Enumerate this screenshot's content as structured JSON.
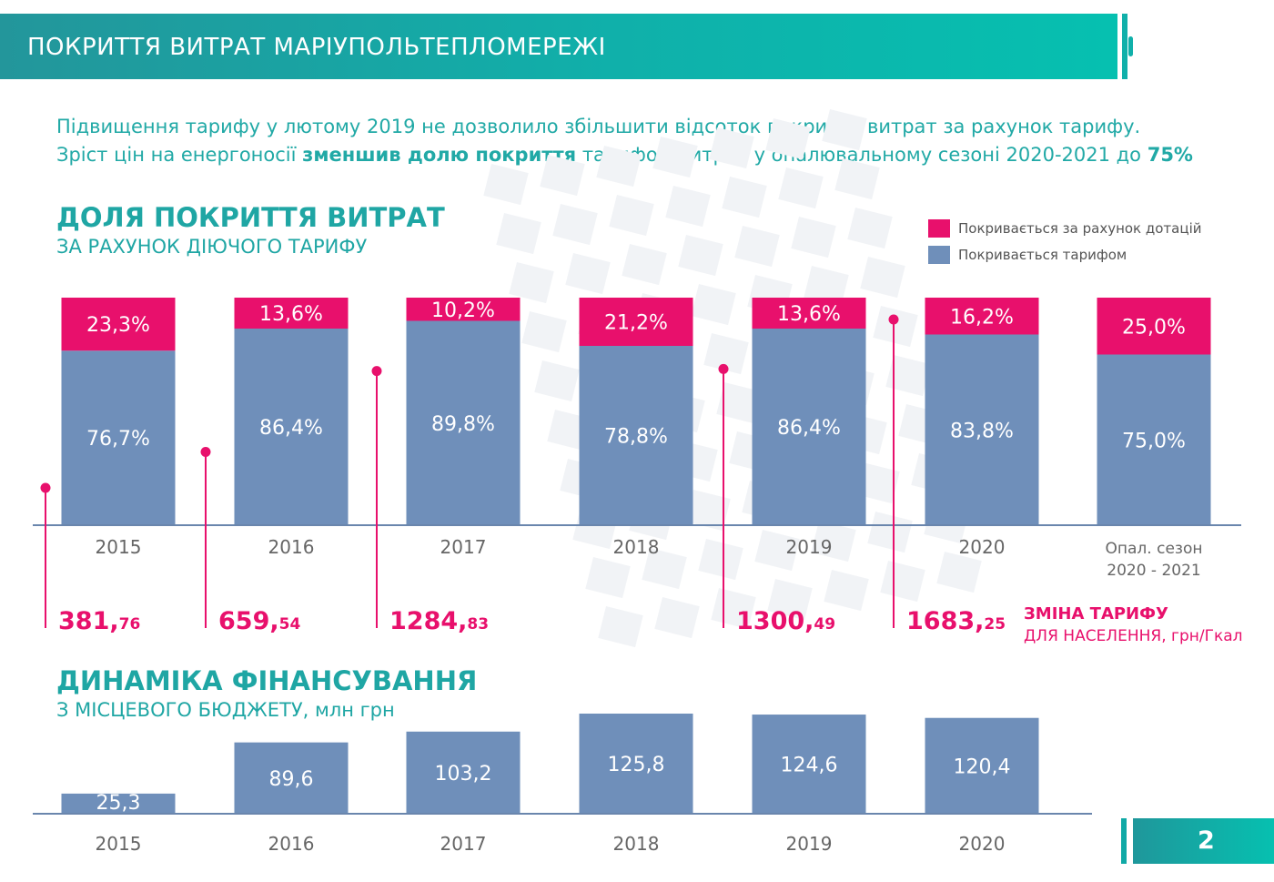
{
  "header": {
    "title": "ПОКРИТТЯ ВИТРАТ МАРІУПОЛЬТЕПЛОМЕРЕЖІ"
  },
  "intro": {
    "line1": "Підвищення тарифу у лютому 2019 не дозволило збільшити відсоток покриття витрат за рахунок тарифу.",
    "line2_a": "Зріст цін на енергоносії ",
    "line2_b": "зменшив долю покриття",
    "line2_c": " тарифом витрат у опалювальному сезоні 2020-2021 до ",
    "line2_d": "75%"
  },
  "coverage": {
    "title": "ДОЛЯ ПОКРИТТЯ ВИТРАТ",
    "subtitle": "ЗА РАХУНОК ДІЮЧОГО ТАРИФУ",
    "legend_subsidy": "Покривається за рахунок дотацій",
    "legend_tariff": "Покривається тарифом"
  },
  "tariff_note": {
    "line1": "ЗМІНА ТАРИФУ",
    "line2": "ДЛЯ НАСЕЛЕННЯ, грн/Гкал"
  },
  "funding": {
    "title": "ДИНАМІКА ФІНАНСУВАННЯ",
    "subtitle": "З МІСЦЕВОГО БЮДЖЕТУ, млн грн"
  },
  "page_number": "2",
  "colors": {
    "teal": "#1fa6a4",
    "subsidy": "#e8106c",
    "tariff": "#6f8fba",
    "tariff_change": "#e8106c",
    "axis": "#6a86ad"
  },
  "chart_data": [
    {
      "type": "bar",
      "stacked": true,
      "title": "ДОЛЯ ПОКРИТТЯ ВИТРАТ",
      "categories": [
        "2015",
        "2016",
        "2017",
        "2018",
        "2019",
        "2020",
        "Опал. сезон|2020 - 2021"
      ],
      "series": [
        {
          "name": "Покривається тарифом",
          "values": [
            76.7,
            86.4,
            89.8,
            78.8,
            86.4,
            83.8,
            75.0
          ],
          "labels": [
            "76,7%",
            "86,4%",
            "89,8%",
            "78,8%",
            "86,4%",
            "83,8%",
            "75,0%"
          ]
        },
        {
          "name": "Покривається за рахунок дотацій",
          "values": [
            23.3,
            13.6,
            10.2,
            21.2,
            13.6,
            16.2,
            25.0
          ],
          "labels": [
            "23,3%",
            "13,6%",
            "10,2%",
            "21,2%",
            "13,6%",
            "16,2%",
            "25,0%"
          ]
        }
      ],
      "ylim": [
        0,
        100
      ],
      "legend": "top-right"
    },
    {
      "type": "line",
      "title": "ЗМІНА ТАРИФУ ДЛЯ НАСЕЛЕННЯ, грн/Гкал",
      "markers": [
        {
          "position": "before 2015",
          "value": 381.76,
          "label_int": "381,",
          "label_dec": "76"
        },
        {
          "position": "before 2016",
          "value": 659.54,
          "label_int": "659,",
          "label_dec": "54"
        },
        {
          "position": "before 2017",
          "value": 1284.83,
          "label_int": "1284,",
          "label_dec": "83"
        },
        {
          "position": "before 2019",
          "value": 1300.49,
          "label_int": "1300,",
          "label_dec": "49"
        },
        {
          "position": "before 2020",
          "value": 1683.25,
          "label_int": "1683,",
          "label_dec": "25"
        }
      ]
    },
    {
      "type": "bar",
      "title": "ДИНАМІКА ФІНАНСУВАННЯ",
      "categories": [
        "2015",
        "2016",
        "2017",
        "2018",
        "2019",
        "2020"
      ],
      "values": [
        25.3,
        89.6,
        103.2,
        125.8,
        124.6,
        120.4
      ],
      "labels": [
        "25,3",
        "89,6",
        "103,2",
        "125,8",
        "124,6",
        "120,4"
      ],
      "ylabel": "млн грн"
    }
  ]
}
